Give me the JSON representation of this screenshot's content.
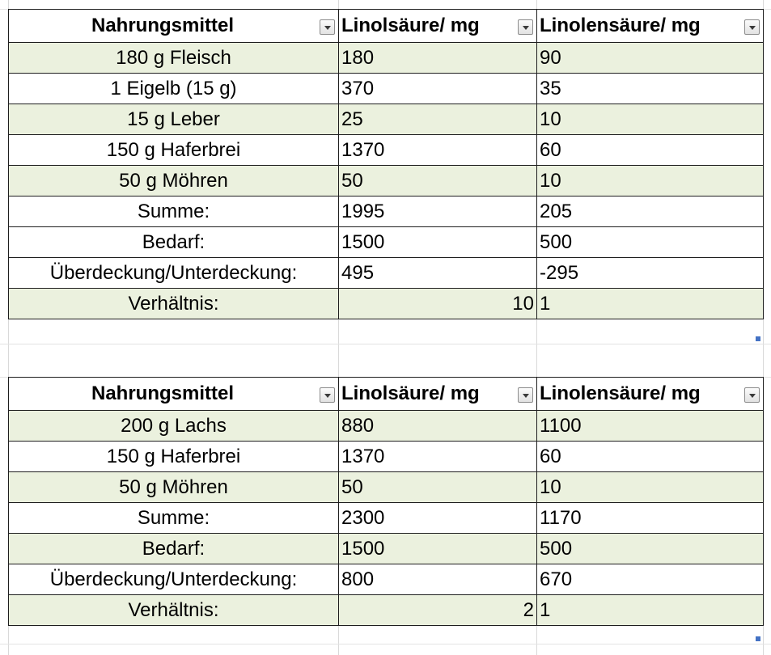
{
  "tables": [
    {
      "headers": [
        "Nahrungsmittel",
        "Linolsäure/ mg",
        "Linolensäure/ mg"
      ],
      "rows": [
        [
          "180 g Fleisch",
          "180",
          "90"
        ],
        [
          "1 Eigelb (15 g)",
          "370",
          "35"
        ],
        [
          "15 g Leber",
          "25",
          "10"
        ],
        [
          "150 g Haferbrei",
          "1370",
          "60"
        ],
        [
          "50 g Möhren",
          "50",
          "10"
        ],
        [
          "Summe:",
          "1995",
          "205"
        ],
        [
          "Bedarf:",
          "1500",
          "500"
        ],
        [
          "Überdeckung/Unterdeckung:",
          "495",
          "-295"
        ],
        [
          "Verhältnis:",
          "10",
          "1"
        ]
      ]
    },
    {
      "headers": [
        "Nahrungsmittel",
        "Linolsäure/ mg",
        "Linolensäure/ mg"
      ],
      "rows": [
        [
          "200 g Lachs",
          "880",
          "1100"
        ],
        [
          "150 g Haferbrei",
          "1370",
          "60"
        ],
        [
          "50 g Möhren",
          "50",
          "10"
        ],
        [
          "Summe:",
          "2300",
          "1170"
        ],
        [
          "Bedarf:",
          "1500",
          "500"
        ],
        [
          "Überdeckung/Unterdeckung:",
          "800",
          "670"
        ],
        [
          "Verhältnis:",
          "2",
          "1"
        ]
      ]
    }
  ],
  "colors": {
    "band": "#ebf1de",
    "border": "#1e1e1e",
    "selection_handle": "#4472c4"
  },
  "icons": {
    "filter_dropdown": "filter-dropdown-icon"
  }
}
